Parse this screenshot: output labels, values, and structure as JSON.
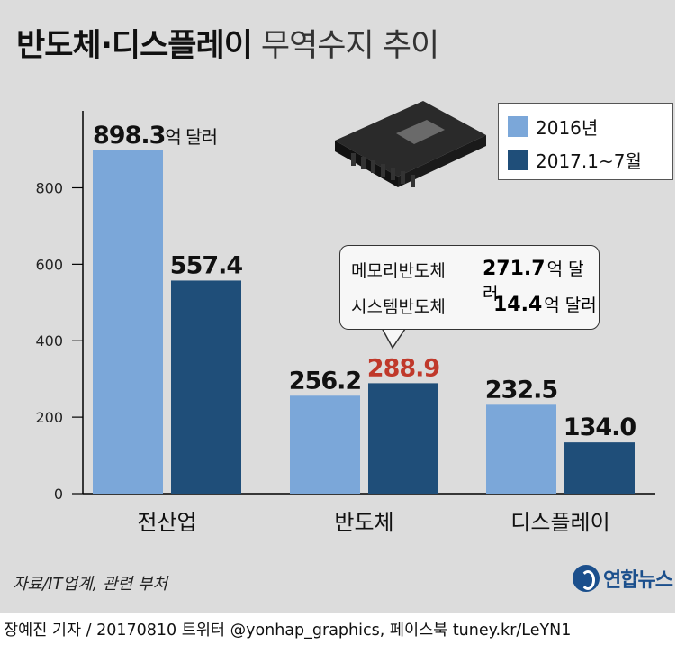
{
  "title": {
    "bold": "반도체·디스플레이",
    "light": "무역수지 추이"
  },
  "legend": [
    {
      "label": "2016년",
      "color": "#7ba7d9"
    },
    {
      "label": "2017.1~7월",
      "color": "#1f4e79"
    }
  ],
  "callout": {
    "rows": [
      {
        "label": "메모리반도체",
        "value": "271.7",
        "unit": "억 달러"
      },
      {
        "label": "시스템반도체",
        "value": "14.4",
        "unit": "억 달러"
      }
    ]
  },
  "chart_data": {
    "type": "bar",
    "categories": [
      "전산업",
      "반도체",
      "디스플레이"
    ],
    "series": [
      {
        "name": "2016년",
        "values": [
          898.3,
          256.2,
          232.5
        ],
        "labels": [
          "898.3",
          "256.2",
          "232.5"
        ],
        "color": "#7ba7d9"
      },
      {
        "name": "2017.1~7월",
        "values": [
          557.4,
          288.9,
          134.0
        ],
        "labels": [
          "557.4",
          "288.9",
          "134.0"
        ],
        "color": "#1f4e79"
      }
    ],
    "first_label_unit": "억 달러",
    "highlight": {
      "series": 1,
      "index": 1,
      "color": "#c0392b"
    },
    "yticks": [
      0,
      200,
      400,
      600,
      800
    ],
    "ylim": [
      0,
      900
    ],
    "grid": false,
    "legend_position": "top-right"
  },
  "source": "자료/IT업계, 관련 부처",
  "logo_text": "연합뉴스",
  "credit": "장예진 기자 / 20170810 트위터 @yonhap_graphics, 페이스북 tuney.kr/LeYN1"
}
